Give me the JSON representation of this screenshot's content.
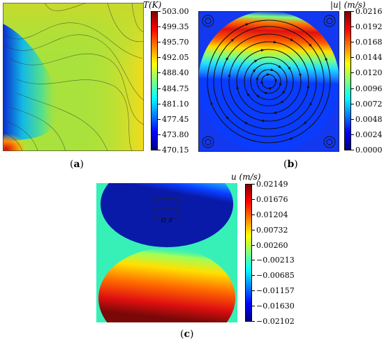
{
  "figure": {
    "panels": [
      {
        "id": "a",
        "caption_open": "(",
        "caption_letter": "a",
        "caption_close": ")"
      },
      {
        "id": "b",
        "caption_open": "(",
        "caption_letter": "b",
        "caption_close": ")"
      },
      {
        "id": "c",
        "caption_open": "(",
        "caption_letter": "c",
        "caption_close": ")"
      }
    ]
  },
  "colors": {
    "jet": [
      "#00007f",
      "#0000ff",
      "#007fff",
      "#00ffff",
      "#7fff7f",
      "#ffff00",
      "#ff7f00",
      "#ff0000",
      "#7f0000"
    ]
  },
  "chart_data": [
    {
      "type": "heatmap",
      "panel": "a",
      "quantity": "T(K)",
      "colorbar_title": "T(K)",
      "colorbar_ticks": [
        "503.00",
        "499.35",
        "495.70",
        "492.05",
        "488.40",
        "484.75",
        "481.10",
        "477.45",
        "473.80",
        "470.15"
      ],
      "vmin": 470.15,
      "vmax": 503.0,
      "colormap": "jet",
      "contour_lines": true
    },
    {
      "type": "heatmap",
      "panel": "b",
      "quantity": "|u| (m/s)",
      "colorbar_title": "|u| (m/s)",
      "colorbar_ticks": [
        "0.0216",
        "0.0192",
        "0.0168",
        "0.0144",
        "0.0120",
        "0.0096",
        "0.0072",
        "0.0048",
        "0.0024",
        "0.0000"
      ],
      "vmin": 0.0,
      "vmax": 0.0216,
      "colormap": "jet",
      "streamlines": true
    },
    {
      "type": "heatmap",
      "panel": "c",
      "quantity": "u (m/s)",
      "colorbar_title": "u (m/s)",
      "colorbar_ticks": [
        "0.02149",
        "0.01676",
        "0.01204",
        "0.00732",
        "0.00260",
        "−0.00213",
        "−0.00685",
        "−0.01157",
        "−0.01630",
        "−0.02102"
      ],
      "vmin": -0.02102,
      "vmax": 0.02149,
      "colormap": "jet",
      "annotation": "Ω_d"
    }
  ]
}
